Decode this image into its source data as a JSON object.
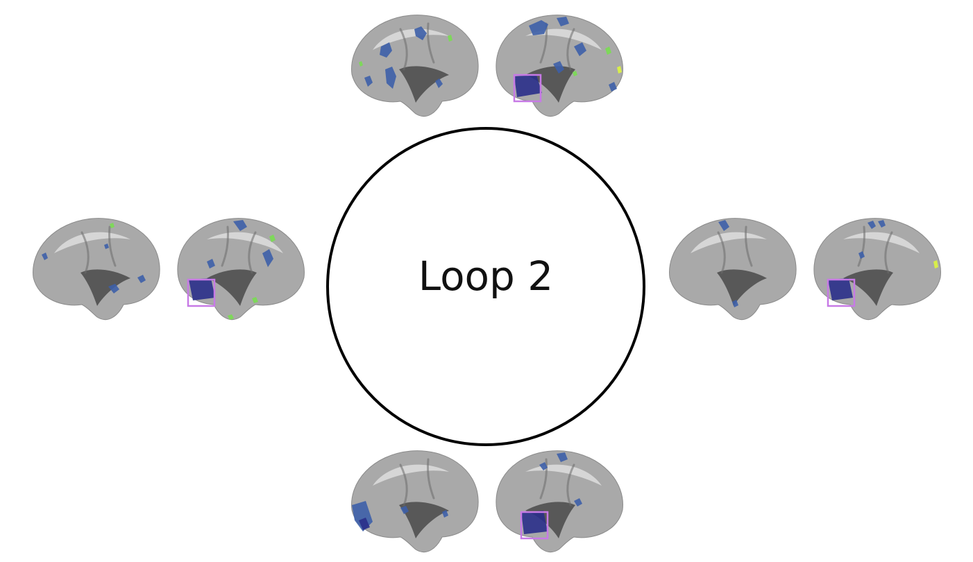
{
  "figure": {
    "center_label": "Loop 2",
    "colors": {
      "cortex": "#a9a9a9",
      "cortex_highlight": "#e6e6e6",
      "sulcus": "#4a4a4a",
      "activation_blue": "#3d5fa8",
      "activation_deep": "#2a2f8a",
      "activation_green": "#7ed85a",
      "activation_yellow": "#d8ee4a",
      "roi_box": "#c77ae6",
      "circle_stroke": "#000000"
    },
    "brain_pairs": [
      {
        "name": "top",
        "views": [
          "left-hemisphere-lateral",
          "right-hemisphere-lateral"
        ]
      },
      {
        "name": "left",
        "views": [
          "left-hemisphere-lateral",
          "right-hemisphere-lateral"
        ]
      },
      {
        "name": "right",
        "views": [
          "left-hemisphere-lateral",
          "right-hemisphere-lateral"
        ]
      },
      {
        "name": "bottom",
        "views": [
          "left-hemisphere-lateral",
          "right-hemisphere-lateral"
        ]
      }
    ]
  }
}
